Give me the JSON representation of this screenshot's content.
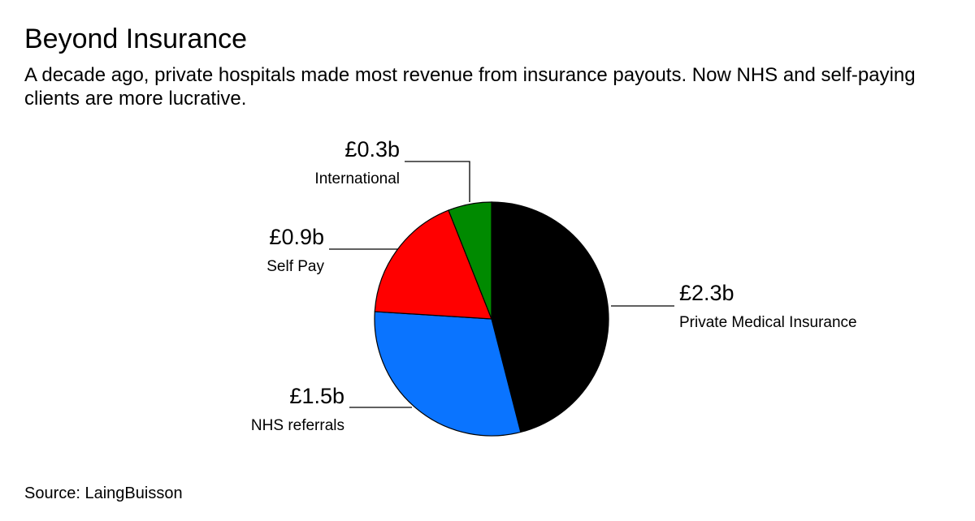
{
  "chart_data": {
    "type": "pie",
    "title": "Beyond Insurance",
    "subtitle": "A decade ago, private hospitals made most revenue from insurance payouts. Now NHS and self-paying clients are more lucrative.",
    "source": "Source: LaingBuisson",
    "slices": [
      {
        "label": "Private Medical Insurance",
        "value": 2.3,
        "value_label": "£2.3b",
        "color": "#000000"
      },
      {
        "label": "NHS referrals",
        "value": 1.5,
        "value_label": "£1.5b",
        "color": "#0a74ff"
      },
      {
        "label": "Self Pay",
        "value": 0.9,
        "value_label": "£0.9b",
        "color": "#ff0000"
      },
      {
        "label": "International",
        "value": 0.3,
        "value_label": "£0.3b",
        "color": "#008a00"
      }
    ]
  }
}
